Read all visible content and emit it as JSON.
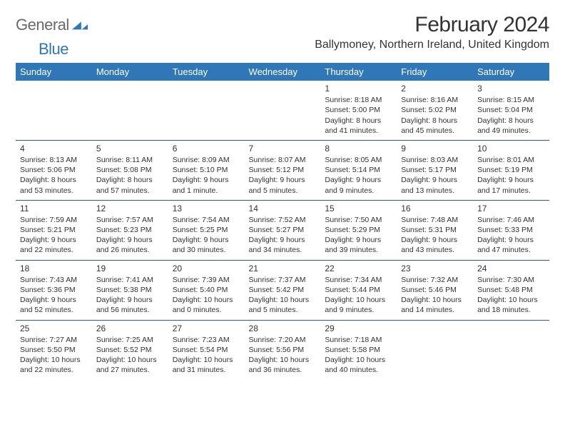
{
  "brand": {
    "part1": "General",
    "part2": "Blue"
  },
  "title": "February 2024",
  "location": "Ballymoney, Northern Ireland, United Kingdom",
  "colors": {
    "header_bg": "#2f77b6",
    "header_fg": "#ffffff",
    "rule": "#2f5a80",
    "text": "#333333"
  },
  "weekdays": [
    "Sunday",
    "Monday",
    "Tuesday",
    "Wednesday",
    "Thursday",
    "Friday",
    "Saturday"
  ],
  "weeks": [
    [
      null,
      null,
      null,
      null,
      {
        "n": "1",
        "sr": "8:18 AM",
        "ss": "5:00 PM",
        "dl": "8 hours and 41 minutes."
      },
      {
        "n": "2",
        "sr": "8:16 AM",
        "ss": "5:02 PM",
        "dl": "8 hours and 45 minutes."
      },
      {
        "n": "3",
        "sr": "8:15 AM",
        "ss": "5:04 PM",
        "dl": "8 hours and 49 minutes."
      }
    ],
    [
      {
        "n": "4",
        "sr": "8:13 AM",
        "ss": "5:06 PM",
        "dl": "8 hours and 53 minutes."
      },
      {
        "n": "5",
        "sr": "8:11 AM",
        "ss": "5:08 PM",
        "dl": "8 hours and 57 minutes."
      },
      {
        "n": "6",
        "sr": "8:09 AM",
        "ss": "5:10 PM",
        "dl": "9 hours and 1 minute."
      },
      {
        "n": "7",
        "sr": "8:07 AM",
        "ss": "5:12 PM",
        "dl": "9 hours and 5 minutes."
      },
      {
        "n": "8",
        "sr": "8:05 AM",
        "ss": "5:14 PM",
        "dl": "9 hours and 9 minutes."
      },
      {
        "n": "9",
        "sr": "8:03 AM",
        "ss": "5:17 PM",
        "dl": "9 hours and 13 minutes."
      },
      {
        "n": "10",
        "sr": "8:01 AM",
        "ss": "5:19 PM",
        "dl": "9 hours and 17 minutes."
      }
    ],
    [
      {
        "n": "11",
        "sr": "7:59 AM",
        "ss": "5:21 PM",
        "dl": "9 hours and 22 minutes."
      },
      {
        "n": "12",
        "sr": "7:57 AM",
        "ss": "5:23 PM",
        "dl": "9 hours and 26 minutes."
      },
      {
        "n": "13",
        "sr": "7:54 AM",
        "ss": "5:25 PM",
        "dl": "9 hours and 30 minutes."
      },
      {
        "n": "14",
        "sr": "7:52 AM",
        "ss": "5:27 PM",
        "dl": "9 hours and 34 minutes."
      },
      {
        "n": "15",
        "sr": "7:50 AM",
        "ss": "5:29 PM",
        "dl": "9 hours and 39 minutes."
      },
      {
        "n": "16",
        "sr": "7:48 AM",
        "ss": "5:31 PM",
        "dl": "9 hours and 43 minutes."
      },
      {
        "n": "17",
        "sr": "7:46 AM",
        "ss": "5:33 PM",
        "dl": "9 hours and 47 minutes."
      }
    ],
    [
      {
        "n": "18",
        "sr": "7:43 AM",
        "ss": "5:36 PM",
        "dl": "9 hours and 52 minutes."
      },
      {
        "n": "19",
        "sr": "7:41 AM",
        "ss": "5:38 PM",
        "dl": "9 hours and 56 minutes."
      },
      {
        "n": "20",
        "sr": "7:39 AM",
        "ss": "5:40 PM",
        "dl": "10 hours and 0 minutes."
      },
      {
        "n": "21",
        "sr": "7:37 AM",
        "ss": "5:42 PM",
        "dl": "10 hours and 5 minutes."
      },
      {
        "n": "22",
        "sr": "7:34 AM",
        "ss": "5:44 PM",
        "dl": "10 hours and 9 minutes."
      },
      {
        "n": "23",
        "sr": "7:32 AM",
        "ss": "5:46 PM",
        "dl": "10 hours and 14 minutes."
      },
      {
        "n": "24",
        "sr": "7:30 AM",
        "ss": "5:48 PM",
        "dl": "10 hours and 18 minutes."
      }
    ],
    [
      {
        "n": "25",
        "sr": "7:27 AM",
        "ss": "5:50 PM",
        "dl": "10 hours and 22 minutes."
      },
      {
        "n": "26",
        "sr": "7:25 AM",
        "ss": "5:52 PM",
        "dl": "10 hours and 27 minutes."
      },
      {
        "n": "27",
        "sr": "7:23 AM",
        "ss": "5:54 PM",
        "dl": "10 hours and 31 minutes."
      },
      {
        "n": "28",
        "sr": "7:20 AM",
        "ss": "5:56 PM",
        "dl": "10 hours and 36 minutes."
      },
      {
        "n": "29",
        "sr": "7:18 AM",
        "ss": "5:58 PM",
        "dl": "10 hours and 40 minutes."
      },
      null,
      null
    ]
  ],
  "labels": {
    "sunrise": "Sunrise:",
    "sunset": "Sunset:",
    "daylight": "Daylight:"
  }
}
